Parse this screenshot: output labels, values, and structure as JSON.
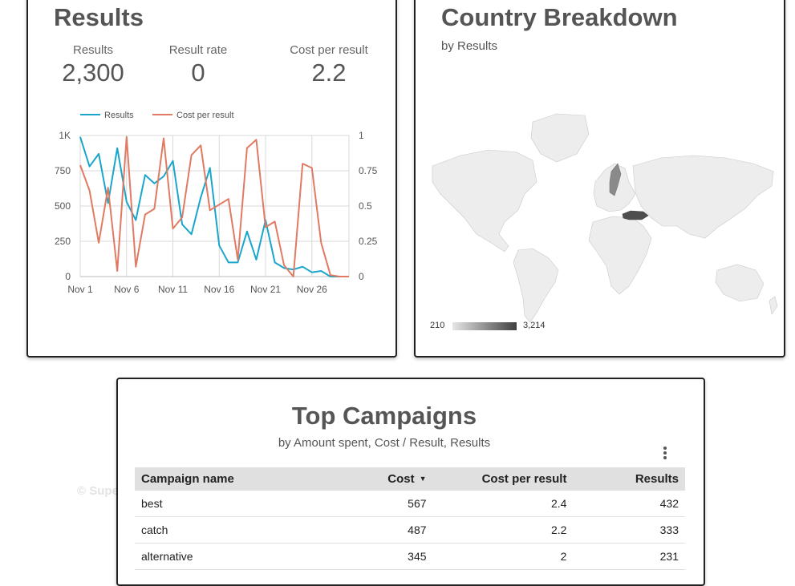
{
  "results_card": {
    "title": "Results",
    "kpis": [
      {
        "label": "Results",
        "value": "2,300"
      },
      {
        "label": "Result rate",
        "value": "0"
      },
      {
        "label": "Cost per result",
        "value": "2.2"
      }
    ],
    "legend": {
      "results": "Results",
      "cost": "Cost per result"
    },
    "colors": {
      "results": "#1aa6cc",
      "cost": "#e07a62"
    }
  },
  "chart_data": {
    "type": "line",
    "title": "",
    "x": [
      "Nov 1",
      "Nov 2",
      "Nov 3",
      "Nov 4",
      "Nov 5",
      "Nov 6",
      "Nov 7",
      "Nov 8",
      "Nov 9",
      "Nov 10",
      "Nov 11",
      "Nov 12",
      "Nov 13",
      "Nov 14",
      "Nov 15",
      "Nov 16",
      "Nov 17",
      "Nov 18",
      "Nov 19",
      "Nov 20",
      "Nov 21",
      "Nov 22",
      "Nov 23",
      "Nov 24",
      "Nov 25",
      "Nov 26",
      "Nov 27",
      "Nov 28",
      "Nov 29",
      "Nov 30"
    ],
    "x_tick_labels": [
      "Nov 1",
      "Nov 6",
      "Nov 11",
      "Nov 16",
      "Nov 21",
      "Nov 26"
    ],
    "series": [
      {
        "name": "Results",
        "axis": "left",
        "values": [
          990,
          780,
          870,
          520,
          910,
          530,
          400,
          720,
          660,
          710,
          820,
          370,
          300,
          560,
          770,
          220,
          100,
          100,
          320,
          120,
          400,
          100,
          60,
          50,
          70,
          30,
          40,
          0,
          0,
          0
        ]
      },
      {
        "name": "Cost per result",
        "axis": "right",
        "values": [
          0.79,
          0.61,
          0.24,
          0.63,
          0.04,
          0.99,
          0.07,
          0.44,
          0.48,
          0.98,
          0.34,
          0.42,
          0.86,
          0.93,
          0.47,
          0.51,
          0.55,
          0.12,
          0.91,
          0.97,
          0.35,
          0.39,
          0.08,
          0,
          0.8,
          0.77,
          0.24,
          0.01,
          0,
          0
        ]
      }
    ],
    "y_left": {
      "ticks": [
        "0",
        "250",
        "500",
        "750",
        "1K"
      ],
      "ylim": [
        0,
        1000
      ]
    },
    "y_right": {
      "ticks": [
        "0",
        "0.25",
        "0.5",
        "0.75",
        "1"
      ],
      "ylim": [
        0,
        1
      ]
    },
    "grid": true,
    "legend": "top-left"
  },
  "country_card": {
    "title": "Country Breakdown",
    "subtitle": "by Results",
    "legend_min": "210",
    "legend_max": "3,214"
  },
  "campaigns_card": {
    "title": "Top Campaigns",
    "subtitle": "by  Amount spent, Cost / Result, Results",
    "columns": [
      "Campaign name",
      "Cost",
      "Cost per result",
      "Results"
    ],
    "rows": [
      {
        "name": "best",
        "cost": "567",
        "cpr": "2.4",
        "results": "432"
      },
      {
        "name": "catch",
        "cost": "487",
        "cpr": "2.2",
        "results": "333"
      },
      {
        "name": "alternative",
        "cost": "345",
        "cpr": "2",
        "results": "231"
      }
    ]
  },
  "watermark": "© Supe"
}
